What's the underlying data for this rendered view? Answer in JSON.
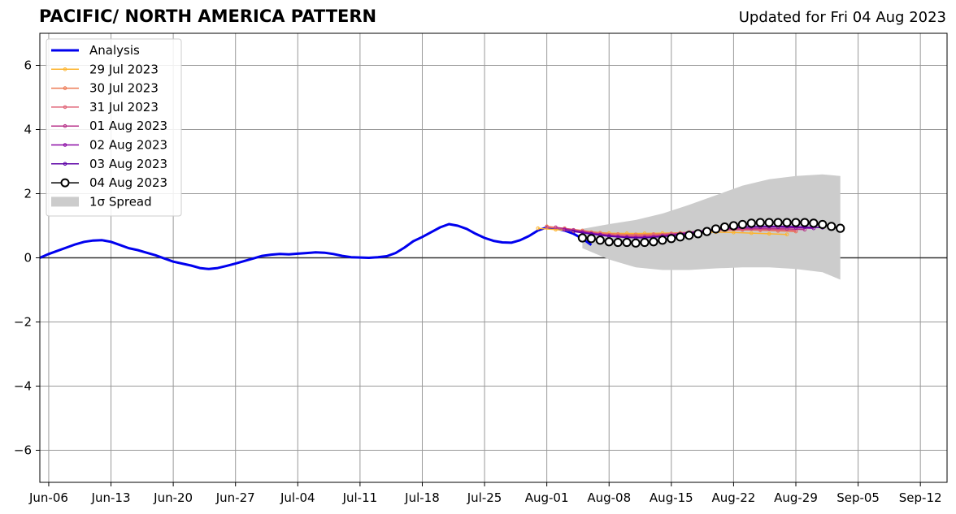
{
  "header": {
    "title": "PACIFIC/ NORTH AMERICA PATTERN",
    "updated": "Updated for Fri 04 Aug 2023"
  },
  "chart_data": {
    "type": "line",
    "x_axis": {
      "kind": "date",
      "range": [
        "2023-06-05",
        "2023-09-15"
      ],
      "ticks": [
        "2023-06-06",
        "2023-06-13",
        "2023-06-20",
        "2023-06-27",
        "2023-07-04",
        "2023-07-11",
        "2023-07-18",
        "2023-07-25",
        "2023-08-01",
        "2023-08-08",
        "2023-08-15",
        "2023-08-22",
        "2023-08-29",
        "2023-09-05",
        "2023-09-12"
      ],
      "tick_labels": [
        "Jun-06",
        "Jun-13",
        "Jun-20",
        "Jun-27",
        "Jul-04",
        "Jul-11",
        "Jul-18",
        "Jul-25",
        "Aug-01",
        "Aug-08",
        "Aug-15",
        "Aug-22",
        "Aug-29",
        "Sep-05",
        "Sep-12"
      ]
    },
    "y_axis": {
      "range": [
        -7,
        7
      ],
      "ticks": [
        -6,
        -4,
        -2,
        0,
        2,
        4,
        6
      ],
      "tick_labels": [
        "−6",
        "−4",
        "−2",
        "0",
        "2",
        "4",
        "6"
      ]
    },
    "grid": true,
    "zero_line": true,
    "legend_position": "upper-left",
    "colors": {
      "analysis": "#0000ee",
      "spread": "#cccccc",
      "grid": "#999999",
      "latest": "#000000"
    },
    "analysis": {
      "name": "Analysis",
      "color": "#0000ee",
      "points": [
        [
          "2023-06-05",
          0.0
        ],
        [
          "2023-06-06",
          0.12
        ],
        [
          "2023-06-07",
          0.22
        ],
        [
          "2023-06-08",
          0.32
        ],
        [
          "2023-06-09",
          0.42
        ],
        [
          "2023-06-10",
          0.5
        ],
        [
          "2023-06-11",
          0.54
        ],
        [
          "2023-06-12",
          0.55
        ],
        [
          "2023-06-13",
          0.5
        ],
        [
          "2023-06-14",
          0.4
        ],
        [
          "2023-06-15",
          0.3
        ],
        [
          "2023-06-16",
          0.24
        ],
        [
          "2023-06-17",
          0.16
        ],
        [
          "2023-06-18",
          0.08
        ],
        [
          "2023-06-19",
          -0.02
        ],
        [
          "2023-06-20",
          -0.12
        ],
        [
          "2023-06-21",
          -0.18
        ],
        [
          "2023-06-22",
          -0.24
        ],
        [
          "2023-06-23",
          -0.32
        ],
        [
          "2023-06-24",
          -0.35
        ],
        [
          "2023-06-25",
          -0.32
        ],
        [
          "2023-06-26",
          -0.25
        ],
        [
          "2023-06-27",
          -0.18
        ],
        [
          "2023-06-28",
          -0.1
        ],
        [
          "2023-06-29",
          -0.02
        ],
        [
          "2023-06-30",
          0.06
        ],
        [
          "2023-07-01",
          0.1
        ],
        [
          "2023-07-02",
          0.12
        ],
        [
          "2023-07-03",
          0.11
        ],
        [
          "2023-07-04",
          0.13
        ],
        [
          "2023-07-05",
          0.15
        ],
        [
          "2023-07-06",
          0.17
        ],
        [
          "2023-07-07",
          0.16
        ],
        [
          "2023-07-08",
          0.12
        ],
        [
          "2023-07-09",
          0.06
        ],
        [
          "2023-07-10",
          0.02
        ],
        [
          "2023-07-11",
          0.01
        ],
        [
          "2023-07-12",
          0.0
        ],
        [
          "2023-07-13",
          0.02
        ],
        [
          "2023-07-14",
          0.05
        ],
        [
          "2023-07-15",
          0.15
        ],
        [
          "2023-07-16",
          0.32
        ],
        [
          "2023-07-17",
          0.52
        ],
        [
          "2023-07-18",
          0.65
        ],
        [
          "2023-07-19",
          0.8
        ],
        [
          "2023-07-20",
          0.95
        ],
        [
          "2023-07-21",
          1.05
        ],
        [
          "2023-07-22",
          1.0
        ],
        [
          "2023-07-23",
          0.9
        ],
        [
          "2023-07-24",
          0.75
        ],
        [
          "2023-07-25",
          0.62
        ],
        [
          "2023-07-26",
          0.53
        ],
        [
          "2023-07-27",
          0.48
        ],
        [
          "2023-07-28",
          0.47
        ],
        [
          "2023-07-29",
          0.55
        ],
        [
          "2023-07-30",
          0.68
        ],
        [
          "2023-07-31",
          0.85
        ],
        [
          "2023-08-01",
          0.95
        ],
        [
          "2023-08-02",
          0.92
        ],
        [
          "2023-08-03",
          0.85
        ],
        [
          "2023-08-04",
          0.75
        ],
        [
          "2023-08-05",
          0.6
        ],
        [
          "2023-08-06",
          0.4
        ]
      ]
    },
    "spread": {
      "name": "1σ Spread",
      "color": "#cccccc",
      "x": [
        "2023-08-05",
        "2023-08-08",
        "2023-08-11",
        "2023-08-14",
        "2023-08-17",
        "2023-08-20",
        "2023-08-23",
        "2023-08-26",
        "2023-08-29",
        "2023-09-01",
        "2023-09-03"
      ],
      "upper": [
        0.9,
        1.05,
        1.18,
        1.38,
        1.65,
        1.95,
        2.25,
        2.45,
        2.55,
        2.6,
        2.55
      ],
      "lower": [
        0.3,
        -0.05,
        -0.3,
        -0.38,
        -0.38,
        -0.33,
        -0.3,
        -0.3,
        -0.35,
        -0.45,
        -0.68
      ]
    },
    "series": [
      {
        "name": "29 Jul 2023",
        "color": "#fdb42f",
        "x": [
          "2023-07-31",
          "2023-08-02",
          "2023-08-04",
          "2023-08-06",
          "2023-08-08",
          "2023-08-10",
          "2023-08-12",
          "2023-08-14",
          "2023-08-16",
          "2023-08-18",
          "2023-08-20",
          "2023-08-22",
          "2023-08-24",
          "2023-08-26",
          "2023-08-28"
        ],
        "y": [
          0.92,
          0.88,
          0.84,
          0.8,
          0.77,
          0.76,
          0.76,
          0.77,
          0.78,
          0.79,
          0.8,
          0.79,
          0.77,
          0.75,
          0.73
        ]
      },
      {
        "name": "30 Jul 2023",
        "color": "#ed7953",
        "x": [
          "2023-08-01",
          "2023-08-03",
          "2023-08-05",
          "2023-08-07",
          "2023-08-09",
          "2023-08-11",
          "2023-08-13",
          "2023-08-15",
          "2023-08-17",
          "2023-08-19",
          "2023-08-21",
          "2023-08-23",
          "2023-08-25",
          "2023-08-27",
          "2023-08-29"
        ],
        "y": [
          0.98,
          0.92,
          0.85,
          0.78,
          0.74,
          0.73,
          0.74,
          0.76,
          0.8,
          0.83,
          0.86,
          0.87,
          0.86,
          0.84,
          0.82
        ]
      },
      {
        "name": "31 Jul 2023",
        "color": "#e06377",
        "x": [
          "2023-08-01",
          "2023-08-03",
          "2023-08-05",
          "2023-08-07",
          "2023-08-09",
          "2023-08-11",
          "2023-08-13",
          "2023-08-15",
          "2023-08-17",
          "2023-08-19",
          "2023-08-21",
          "2023-08-23",
          "2023-08-25",
          "2023-08-27",
          "2023-08-29"
        ],
        "y": [
          0.96,
          0.9,
          0.82,
          0.75,
          0.7,
          0.69,
          0.71,
          0.75,
          0.8,
          0.84,
          0.87,
          0.88,
          0.88,
          0.87,
          0.85
        ]
      },
      {
        "name": "01 Aug 2023",
        "color": "#b83289",
        "x": [
          "2023-08-02",
          "2023-08-04",
          "2023-08-06",
          "2023-08-08",
          "2023-08-10",
          "2023-08-12",
          "2023-08-14",
          "2023-08-16",
          "2023-08-18",
          "2023-08-20",
          "2023-08-22",
          "2023-08-24",
          "2023-08-26",
          "2023-08-28",
          "2023-08-30"
        ],
        "y": [
          0.95,
          0.87,
          0.78,
          0.7,
          0.66,
          0.66,
          0.7,
          0.76,
          0.83,
          0.88,
          0.9,
          0.91,
          0.91,
          0.9,
          0.88
        ]
      },
      {
        "name": "02 Aug 2023",
        "color": "#8b0aa5",
        "x": [
          "2023-08-03",
          "2023-08-05",
          "2023-08-07",
          "2023-08-09",
          "2023-08-11",
          "2023-08-13",
          "2023-08-15",
          "2023-08-17",
          "2023-08-19",
          "2023-08-21",
          "2023-08-23",
          "2023-08-25",
          "2023-08-27",
          "2023-08-29",
          "2023-08-31"
        ],
        "y": [
          0.88,
          0.8,
          0.72,
          0.66,
          0.63,
          0.65,
          0.7,
          0.78,
          0.86,
          0.92,
          0.95,
          0.96,
          0.96,
          0.94,
          0.92
        ]
      },
      {
        "name": "03 Aug 2023",
        "color": "#5c01a6",
        "x": [
          "2023-08-04",
          "2023-08-06",
          "2023-08-08",
          "2023-08-10",
          "2023-08-12",
          "2023-08-14",
          "2023-08-16",
          "2023-08-18",
          "2023-08-20",
          "2023-08-22",
          "2023-08-24",
          "2023-08-26",
          "2023-08-28",
          "2023-08-30",
          "2023-09-01"
        ],
        "y": [
          0.82,
          0.74,
          0.67,
          0.63,
          0.62,
          0.66,
          0.72,
          0.8,
          0.88,
          0.94,
          0.97,
          0.98,
          0.98,
          0.96,
          0.94
        ]
      },
      {
        "name": "04 Aug 2023",
        "color": "#000000",
        "x": [
          "2023-08-05",
          "2023-08-06",
          "2023-08-07",
          "2023-08-08",
          "2023-08-09",
          "2023-08-10",
          "2023-08-11",
          "2023-08-12",
          "2023-08-13",
          "2023-08-14",
          "2023-08-15",
          "2023-08-16",
          "2023-08-17",
          "2023-08-18",
          "2023-08-19",
          "2023-08-20",
          "2023-08-21",
          "2023-08-22",
          "2023-08-23",
          "2023-08-24",
          "2023-08-25",
          "2023-08-26",
          "2023-08-27",
          "2023-08-28",
          "2023-08-29",
          "2023-08-30",
          "2023-08-31",
          "2023-09-01",
          "2023-09-02",
          "2023-09-03"
        ],
        "y": [
          0.62,
          0.6,
          0.55,
          0.5,
          0.48,
          0.48,
          0.46,
          0.48,
          0.5,
          0.55,
          0.6,
          0.65,
          0.7,
          0.75,
          0.82,
          0.9,
          0.96,
          1.0,
          1.04,
          1.08,
          1.1,
          1.1,
          1.1,
          1.1,
          1.1,
          1.1,
          1.08,
          1.04,
          0.98,
          0.92
        ]
      }
    ],
    "legend": [
      "Analysis",
      "29 Jul 2023",
      "30 Jul 2023",
      "31 Jul 2023",
      "01 Aug 2023",
      "02 Aug 2023",
      "03 Aug 2023",
      "04 Aug 2023",
      "1σ Spread"
    ]
  }
}
